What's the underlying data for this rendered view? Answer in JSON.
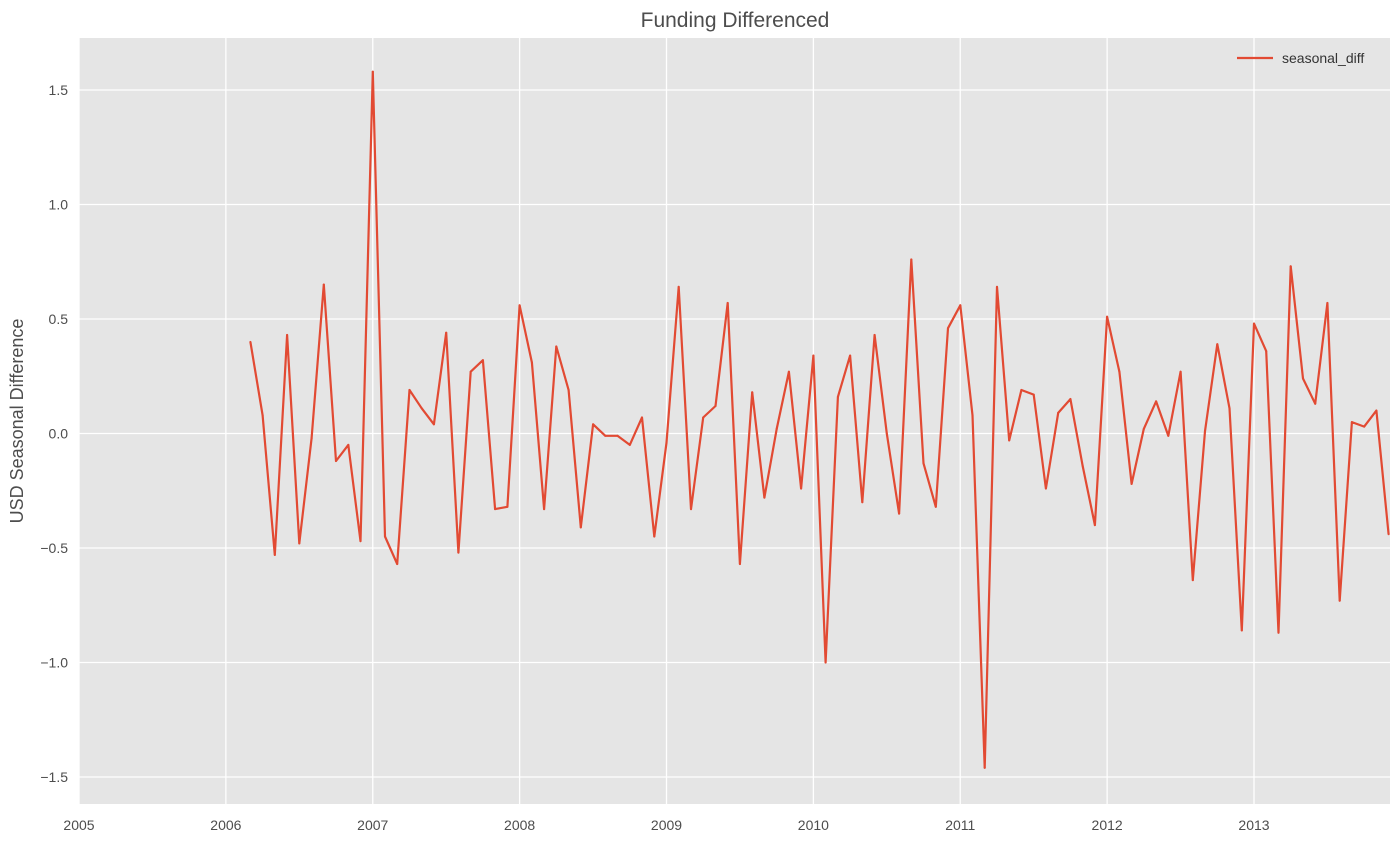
{
  "chart_data": {
    "type": "line",
    "title": "Funding Differenced",
    "xlabel": "",
    "ylabel": "USD Seasonal Difference",
    "x_ticks": [
      "2005",
      "2006",
      "2007",
      "2008",
      "2009",
      "2010",
      "2011",
      "2012",
      "2013"
    ],
    "y_ticks": [
      "1.5",
      "1.0",
      "0.5",
      "0.0",
      "−0.5",
      "−1.0",
      "−1.5"
    ],
    "xlim": [
      "2005-01",
      "2013-12"
    ],
    "ylim": [
      -1.6,
      1.73
    ],
    "grid": true,
    "background": "#e5e5e5",
    "legend_position": "top-right",
    "series": [
      {
        "name": "seasonal_diff",
        "color": "#e24a33",
        "x": [
          "2006-03",
          "2006-04",
          "2006-05",
          "2006-06",
          "2006-07",
          "2006-08",
          "2006-09",
          "2006-10",
          "2006-11",
          "2006-12",
          "2007-01",
          "2007-02",
          "2007-03",
          "2007-04",
          "2007-05",
          "2007-06",
          "2007-07",
          "2007-08",
          "2007-09",
          "2007-10",
          "2007-11",
          "2007-12",
          "2008-01",
          "2008-02",
          "2008-03",
          "2008-04",
          "2008-05",
          "2008-06",
          "2008-07",
          "2008-08",
          "2008-09",
          "2008-10",
          "2008-11",
          "2008-12",
          "2009-01",
          "2009-02",
          "2009-03",
          "2009-04",
          "2009-05",
          "2009-06",
          "2009-07",
          "2009-08",
          "2009-09",
          "2009-10",
          "2009-11",
          "2009-12",
          "2010-01",
          "2010-02",
          "2010-03",
          "2010-04",
          "2010-05",
          "2010-06",
          "2010-07",
          "2010-08",
          "2010-09",
          "2010-10",
          "2010-11",
          "2010-12",
          "2011-01",
          "2011-02",
          "2011-03",
          "2011-04",
          "2011-05",
          "2011-06",
          "2011-07",
          "2011-08",
          "2011-09",
          "2011-10",
          "2011-11",
          "2011-12",
          "2012-01",
          "2012-02",
          "2012-03",
          "2012-04",
          "2012-05",
          "2012-06",
          "2012-07",
          "2012-08",
          "2012-09",
          "2012-10",
          "2012-11",
          "2012-12",
          "2013-01",
          "2013-02",
          "2013-03",
          "2013-04",
          "2013-05",
          "2013-06",
          "2013-07",
          "2013-08",
          "2013-09",
          "2013-10",
          "2013-11",
          "2013-12"
        ],
        "values": [
          0.4,
          0.08,
          -0.53,
          0.43,
          -0.48,
          -0.02,
          0.65,
          -0.12,
          -0.05,
          -0.47,
          1.58,
          -0.45,
          -0.57,
          0.19,
          0.11,
          0.04,
          0.44,
          -0.52,
          0.27,
          0.32,
          -0.33,
          -0.32,
          0.56,
          0.31,
          -0.33,
          0.38,
          0.19,
          -0.41,
          0.04,
          -0.01,
          -0.01,
          -0.05,
          0.07,
          -0.45,
          -0.04,
          0.64,
          -0.33,
          0.07,
          0.12,
          0.57,
          -0.57,
          0.18,
          -0.28,
          0.02,
          0.27,
          -0.24,
          0.34,
          -1.0,
          0.16,
          0.34,
          -0.3,
          0.43,
          0.0,
          -0.35,
          0.76,
          -0.13,
          -0.32,
          0.46,
          0.56,
          0.08,
          -1.46,
          0.64,
          -0.03,
          0.19,
          0.17,
          -0.24,
          0.09,
          0.15,
          -0.14,
          -0.4,
          0.51,
          0.27,
          -0.22,
          0.02,
          0.14,
          -0.01,
          0.27,
          -0.64,
          0.01,
          0.39,
          0.11,
          -0.86,
          0.48,
          0.36,
          -0.87,
          0.73,
          0.24,
          0.13,
          0.57,
          -0.73,
          0.05,
          0.03,
          0.1,
          -0.44
        ]
      }
    ]
  }
}
